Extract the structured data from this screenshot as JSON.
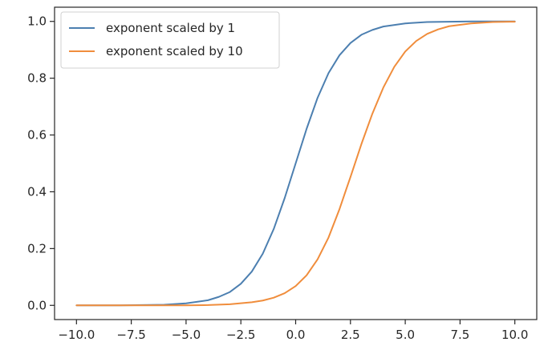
{
  "chart_data": {
    "type": "line",
    "title": "",
    "xlabel": "",
    "ylabel": "",
    "xlim": [
      -11.0,
      11.0
    ],
    "ylim": [
      -0.05,
      1.05
    ],
    "grid": false,
    "legend_position": "top-left",
    "x_ticks": [
      -10.0,
      -7.5,
      -5.0,
      -2.5,
      0.0,
      2.5,
      5.0,
      7.5,
      10.0
    ],
    "x_tick_labels": [
      "−10.0",
      "−7.5",
      "−5.0",
      "−2.5",
      "0.0",
      "2.5",
      "5.0",
      "7.5",
      "10.0"
    ],
    "y_ticks": [
      0.0,
      0.2,
      0.4,
      0.6,
      0.8,
      1.0
    ],
    "y_tick_labels": [
      "0.0",
      "0.2",
      "0.4",
      "0.6",
      "0.8",
      "1.0"
    ],
    "series": [
      {
        "name": "exponent scaled by 1",
        "color": "#4c7fb0",
        "x": [
          -10,
          -9,
          -8,
          -7,
          -6,
          -5,
          -4,
          -3.5,
          -3,
          -2.5,
          -2,
          -1.5,
          -1,
          -0.5,
          0,
          0.5,
          1,
          1.5,
          2,
          2.5,
          3,
          3.5,
          4,
          5,
          6,
          7,
          8,
          9,
          10
        ],
        "y": [
          0.0,
          0.0,
          0.0,
          0.001,
          0.002,
          0.007,
          0.018,
          0.03,
          0.047,
          0.076,
          0.119,
          0.182,
          0.269,
          0.378,
          0.5,
          0.622,
          0.731,
          0.818,
          0.881,
          0.924,
          0.953,
          0.97,
          0.982,
          0.993,
          0.998,
          0.999,
          1.0,
          1.0,
          1.0
        ]
      },
      {
        "name": "exponent scaled by 10",
        "color": "#f08d3c",
        "x": [
          -10,
          -9,
          -8,
          -7,
          -6,
          -5,
          -4,
          -3,
          -2,
          -1.5,
          -1,
          -0.5,
          0,
          0.5,
          1,
          1.5,
          2,
          2.3,
          2.5,
          3,
          3.5,
          4,
          4.5,
          5,
          5.5,
          6,
          6.5,
          7,
          8,
          9,
          10
        ],
        "y": [
          0.0,
          0.0,
          0.0,
          0.0,
          0.0,
          0.0,
          0.001,
          0.004,
          0.011,
          0.017,
          0.027,
          0.043,
          0.068,
          0.106,
          0.162,
          0.239,
          0.339,
          0.407,
          0.452,
          0.568,
          0.675,
          0.767,
          0.84,
          0.894,
          0.931,
          0.956,
          0.972,
          0.983,
          0.993,
          0.998,
          0.999
        ]
      }
    ]
  }
}
